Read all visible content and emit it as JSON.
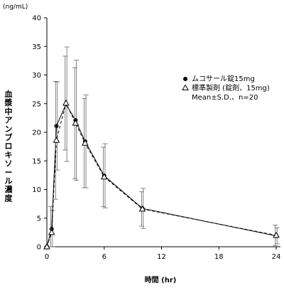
{
  "chart_data": {
    "type": "line",
    "title": "",
    "y_unit": "(ng/mL)",
    "xlabel": "時間 (hr)",
    "ylabel": "血漿中アンブロキソール濃度",
    "xlim": [
      0,
      24
    ],
    "ylim": [
      0,
      40
    ],
    "x_ticks": [
      0,
      6,
      12,
      18,
      24
    ],
    "y_ticks": [
      0,
      5,
      10,
      15,
      20,
      25,
      30,
      35,
      40
    ],
    "grid": false,
    "legend_position": "right",
    "series": [
      {
        "name": "ムコサール錠15mg",
        "marker": "filled-circle",
        "line_style": "solid",
        "x": [
          0,
          0.5,
          1,
          2,
          3,
          4,
          6,
          10,
          24
        ],
        "y": [
          0,
          3.1,
          21.1,
          24.9,
          22.1,
          18.4,
          12.4,
          6.7,
          1.9
        ],
        "sd": [
          0,
          3.3,
          7.7,
          10.0,
          10.5,
          8.1,
          5.6,
          3.5,
          1.4
        ]
      },
      {
        "name": "標準製剤 (錠剤、15mg)",
        "marker": "open-triangle",
        "line_style": "dashed",
        "x": [
          0,
          0.5,
          1,
          2,
          3,
          4,
          6,
          10,
          24
        ],
        "y": [
          0,
          2.5,
          18.6,
          25.1,
          21.6,
          18.1,
          12.2,
          6.6,
          2.0
        ],
        "sd": [
          0,
          4.5,
          10.3,
          8.2,
          9.7,
          7.8,
          5.2,
          3.0,
          1.8
        ]
      }
    ],
    "annotation": "Mean±S.D.、n=20"
  }
}
